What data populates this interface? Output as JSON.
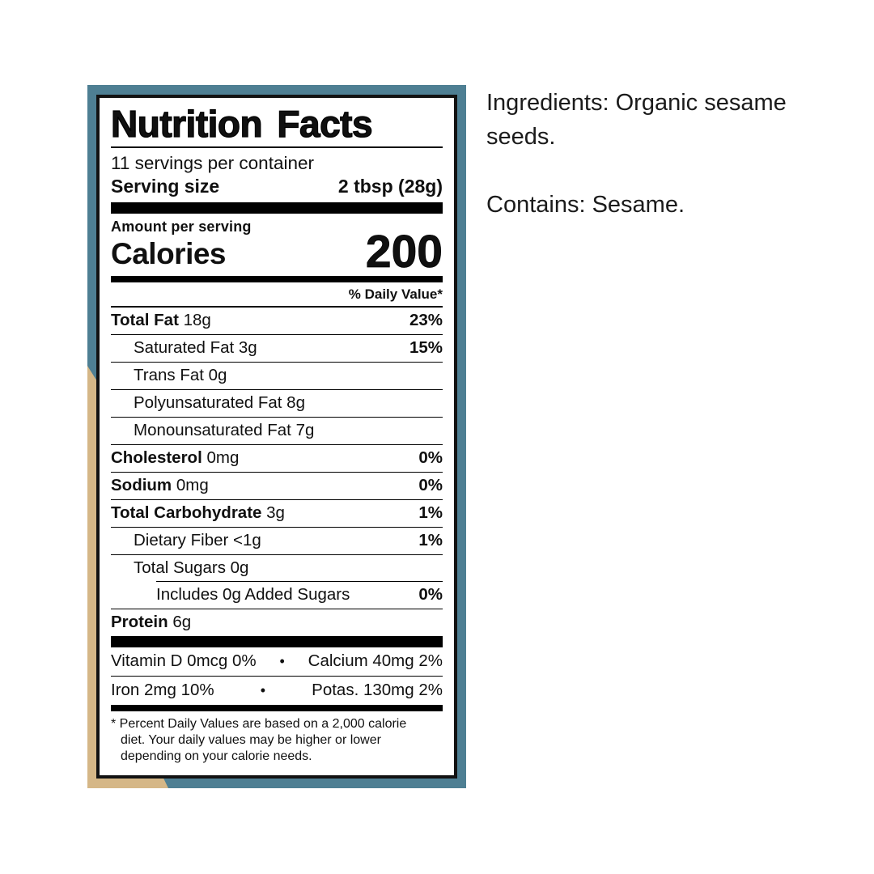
{
  "colors": {
    "photo_teal": "#4e7f93",
    "banner_tan": "#d5b787",
    "label_background": "#ffffff",
    "label_ink": "#121212"
  },
  "side_text": {
    "ingredients": "Ingredients: Organic sesame seeds.",
    "contains": "Contains: Sesame."
  },
  "label": {
    "title": "Nutrition Facts",
    "servings_per_container": "11 servings per container",
    "serving_size_label": "Serving size",
    "serving_size_value": "2 tbsp (28g)",
    "amount_per_serving": "Amount per serving",
    "calories_label": "Calories",
    "calories_value": "200",
    "daily_value_header": "% Daily Value*",
    "rows": [
      {
        "name": "Total Fat",
        "amount": "18g",
        "dv": "23%",
        "bold": true,
        "indent": 0,
        "rule_below": "full"
      },
      {
        "name": "Saturated Fat",
        "amount": "3g",
        "dv": "15%",
        "bold": false,
        "indent": 1,
        "rule_below": "full"
      },
      {
        "name": "Trans Fat",
        "amount": "0g",
        "dv": "",
        "bold": false,
        "indent": 1,
        "rule_below": "full"
      },
      {
        "name": "Polyunsaturated Fat",
        "amount": "8g",
        "dv": "",
        "bold": false,
        "indent": 1,
        "rule_below": "full"
      },
      {
        "name": "Monounsaturated Fat",
        "amount": "7g",
        "dv": "",
        "bold": false,
        "indent": 1,
        "rule_below": "full"
      },
      {
        "name": "Cholesterol",
        "amount": "0mg",
        "dv": "0%",
        "bold": true,
        "indent": 0,
        "rule_below": "full"
      },
      {
        "name": "Sodium",
        "amount": "0mg",
        "dv": "0%",
        "bold": true,
        "indent": 0,
        "rule_below": "full"
      },
      {
        "name": "Total Carbohydrate",
        "amount": "3g",
        "dv": "1%",
        "bold": true,
        "indent": 0,
        "rule_below": "full"
      },
      {
        "name": "Dietary Fiber",
        "amount": "<1g",
        "dv": "1%",
        "bold": false,
        "indent": 1,
        "rule_below": "full"
      },
      {
        "name": "Total Sugars",
        "amount": "0g",
        "dv": "",
        "bold": false,
        "indent": 1,
        "rule_below": "indent"
      },
      {
        "name": "Includes 0g Added Sugars",
        "amount": "",
        "dv": "0%",
        "bold": false,
        "indent": 2,
        "rule_below": "full"
      },
      {
        "name": "Protein",
        "amount": "6g",
        "dv": "",
        "bold": true,
        "indent": 0,
        "rule_below": "none"
      }
    ],
    "bullet": "•",
    "micronutrients": [
      {
        "left": "Vitamin D 0mcg 0%",
        "right": "Calcium 40mg 2%",
        "rule_below": "full"
      },
      {
        "left": "Iron 2mg 10%",
        "right": "Potas. 130mg 2%",
        "rule_below": "none"
      }
    ],
    "footnote": "* Percent Daily Values are based on a 2,000 calorie diet. Your daily values may be higher or lower depending on your calorie needs."
  }
}
